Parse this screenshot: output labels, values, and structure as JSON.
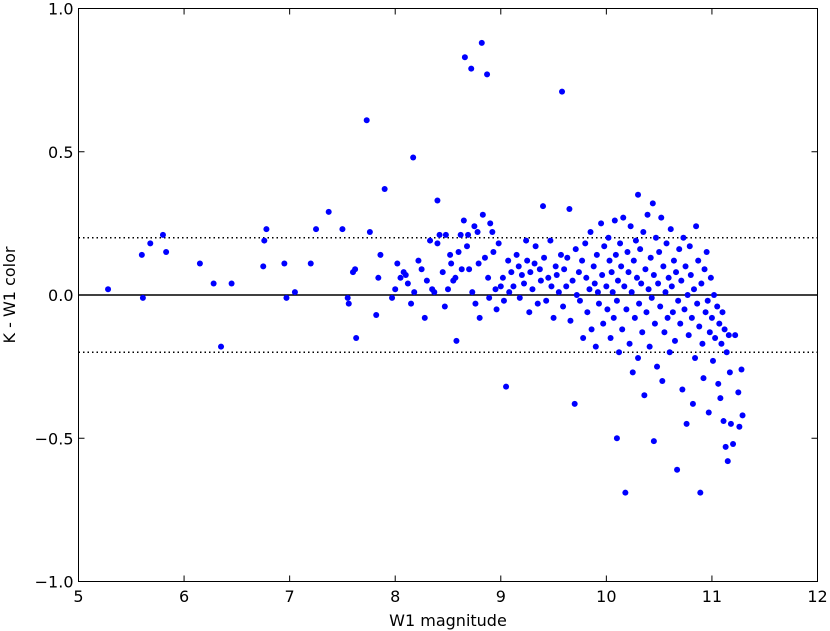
{
  "chart_data": {
    "type": "scatter",
    "title": "",
    "xlabel": "W1 magnitude",
    "ylabel": "K - W1 color",
    "xlim": [
      5,
      12
    ],
    "ylim": [
      -1.0,
      1.0
    ],
    "x_ticks": [
      5,
      6,
      7,
      8,
      9,
      10,
      11,
      12
    ],
    "x_tick_labels": [
      "5",
      "6",
      "7",
      "8",
      "9",
      "10",
      "11",
      "12"
    ],
    "y_ticks": [
      -1.0,
      -0.5,
      0.0,
      0.5,
      1.0
    ],
    "y_tick_labels": [
      "−1.0",
      "−0.5",
      "0.0",
      "0.5",
      "1.0"
    ],
    "grid": false,
    "legend": "none",
    "reference_lines": [
      {
        "y": 0.0,
        "style": "solid"
      },
      {
        "y": 0.2,
        "style": "dotted"
      },
      {
        "y": -0.2,
        "style": "dotted"
      }
    ],
    "point_color": "#0000ff",
    "points": [
      [
        5.28,
        0.02
      ],
      [
        5.6,
        0.14
      ],
      [
        5.61,
        -0.01
      ],
      [
        5.68,
        0.18
      ],
      [
        5.8,
        0.21
      ],
      [
        5.83,
        0.15
      ],
      [
        6.15,
        0.11
      ],
      [
        6.28,
        0.04
      ],
      [
        6.35,
        -0.18
      ],
      [
        6.45,
        0.04
      ],
      [
        6.75,
        0.1
      ],
      [
        6.76,
        0.19
      ],
      [
        6.78,
        0.23
      ],
      [
        6.95,
        0.11
      ],
      [
        6.97,
        -0.01
      ],
      [
        7.05,
        0.01
      ],
      [
        7.2,
        0.11
      ],
      [
        7.25,
        0.23
      ],
      [
        7.37,
        0.29
      ],
      [
        7.5,
        0.23
      ],
      [
        7.55,
        -0.01
      ],
      [
        7.56,
        -0.03
      ],
      [
        7.6,
        0.08
      ],
      [
        7.62,
        0.09
      ],
      [
        7.63,
        -0.15
      ],
      [
        7.73,
        0.61
      ],
      [
        7.76,
        0.22
      ],
      [
        7.82,
        -0.07
      ],
      [
        7.84,
        0.06
      ],
      [
        7.86,
        0.14
      ],
      [
        7.9,
        0.37
      ],
      [
        7.97,
        -0.01
      ],
      [
        8.0,
        0.02
      ],
      [
        8.02,
        0.11
      ],
      [
        8.05,
        0.06
      ],
      [
        8.08,
        0.08
      ],
      [
        8.1,
        0.07
      ],
      [
        8.12,
        0.04
      ],
      [
        8.15,
        -0.03
      ],
      [
        8.17,
        0.48
      ],
      [
        8.18,
        0.01
      ],
      [
        8.22,
        0.12
      ],
      [
        8.25,
        0.09
      ],
      [
        8.28,
        -0.08
      ],
      [
        8.3,
        0.05
      ],
      [
        8.33,
        0.19
      ],
      [
        8.35,
        0.02
      ],
      [
        8.37,
        0.01
      ],
      [
        8.4,
        0.33
      ],
      [
        8.4,
        0.18
      ],
      [
        8.42,
        0.21
      ],
      [
        8.45,
        0.08
      ],
      [
        8.47,
        -0.04
      ],
      [
        8.48,
        0.21
      ],
      [
        8.5,
        0.02
      ],
      [
        8.52,
        0.14
      ],
      [
        8.53,
        0.11
      ],
      [
        8.55,
        0.05
      ],
      [
        8.57,
        0.06
      ],
      [
        8.58,
        -0.16
      ],
      [
        8.6,
        0.15
      ],
      [
        8.62,
        0.21
      ],
      [
        8.63,
        0.09
      ],
      [
        8.65,
        0.26
      ],
      [
        8.66,
        0.83
      ],
      [
        8.68,
        0.17
      ],
      [
        8.69,
        0.21
      ],
      [
        8.7,
        0.09
      ],
      [
        8.72,
        0.79
      ],
      [
        8.73,
        0.01
      ],
      [
        8.75,
        0.24
      ],
      [
        8.76,
        -0.03
      ],
      [
        8.78,
        0.22
      ],
      [
        8.79,
        0.11
      ],
      [
        8.8,
        -0.08
      ],
      [
        8.82,
        0.88
      ],
      [
        8.83,
        0.28
      ],
      [
        8.85,
        0.13
      ],
      [
        8.87,
        0.77
      ],
      [
        8.88,
        0.06
      ],
      [
        8.89,
        -0.01
      ],
      [
        8.9,
        0.25
      ],
      [
        8.92,
        0.22
      ],
      [
        8.93,
        0.15
      ],
      [
        8.95,
        0.02
      ],
      [
        8.96,
        -0.05
      ],
      [
        8.98,
        0.18
      ],
      [
        9.0,
        0.03
      ],
      [
        9.02,
        0.06
      ],
      [
        9.03,
        -0.02
      ],
      [
        9.05,
        -0.32
      ],
      [
        9.07,
        0.12
      ],
      [
        9.08,
        0.01
      ],
      [
        9.1,
        0.08
      ],
      [
        9.12,
        0.03
      ],
      [
        9.15,
        0.14
      ],
      [
        9.17,
        0.1
      ],
      [
        9.18,
        -0.01
      ],
      [
        9.2,
        0.07
      ],
      [
        9.22,
        0.04
      ],
      [
        9.24,
        0.19
      ],
      [
        9.25,
        0.12
      ],
      [
        9.27,
        -0.06
      ],
      [
        9.28,
        0.08
      ],
      [
        9.3,
        0.02
      ],
      [
        9.32,
        0.11
      ],
      [
        9.33,
        0.17
      ],
      [
        9.35,
        -0.03
      ],
      [
        9.37,
        0.09
      ],
      [
        9.38,
        0.05
      ],
      [
        9.4,
        0.31
      ],
      [
        9.41,
        0.13
      ],
      [
        9.43,
        -0.02
      ],
      [
        9.45,
        0.06
      ],
      [
        9.47,
        0.19
      ],
      [
        9.48,
        0.03
      ],
      [
        9.5,
        -0.08
      ],
      [
        9.52,
        0.1
      ],
      [
        9.53,
        0.07
      ],
      [
        9.55,
        0.01
      ],
      [
        9.57,
        0.14
      ],
      [
        9.58,
        0.71
      ],
      [
        9.59,
        -0.04
      ],
      [
        9.6,
        0.09
      ],
      [
        9.62,
        0.03
      ],
      [
        9.63,
        0.13
      ],
      [
        9.65,
        0.3
      ],
      [
        9.66,
        -0.09
      ],
      [
        9.68,
        0.05
      ],
      [
        9.7,
        -0.38
      ],
      [
        9.71,
        0.16
      ],
      [
        9.72,
        0.0
      ],
      [
        9.74,
        0.08
      ],
      [
        9.75,
        -0.02
      ],
      [
        9.77,
        0.12
      ],
      [
        9.78,
        -0.15
      ],
      [
        9.8,
        0.18
      ],
      [
        9.81,
        0.06
      ],
      [
        9.82,
        -0.06
      ],
      [
        9.84,
        0.02
      ],
      [
        9.85,
        0.22
      ],
      [
        9.86,
        -0.12
      ],
      [
        9.88,
        0.1
      ],
      [
        9.89,
        0.04
      ],
      [
        9.9,
        -0.18
      ],
      [
        9.91,
        0.14
      ],
      [
        9.92,
        0.01
      ],
      [
        9.93,
        -0.03
      ],
      [
        9.95,
        0.25
      ],
      [
        9.96,
        0.07
      ],
      [
        9.97,
        -0.1
      ],
      [
        9.98,
        0.17
      ],
      [
        10.0,
        0.03
      ],
      [
        10.01,
        -0.05
      ],
      [
        10.02,
        0.2
      ],
      [
        10.03,
        0.12
      ],
      [
        10.04,
        -0.15
      ],
      [
        10.05,
        0.08
      ],
      [
        10.06,
        0.01
      ],
      [
        10.07,
        -0.08
      ],
      [
        10.08,
        0.26
      ],
      [
        10.09,
        0.14
      ],
      [
        10.1,
        -0.5
      ],
      [
        10.1,
        -0.02
      ],
      [
        10.11,
        0.05
      ],
      [
        10.12,
        -0.2
      ],
      [
        10.13,
        0.18
      ],
      [
        10.14,
        0.1
      ],
      [
        10.15,
        -0.12
      ],
      [
        10.16,
        0.27
      ],
      [
        10.17,
        0.03
      ],
      [
        10.18,
        -0.69
      ],
      [
        10.19,
        -0.05
      ],
      [
        10.2,
        0.15
      ],
      [
        10.21,
        0.08
      ],
      [
        10.22,
        -0.17
      ],
      [
        10.23,
        0.24
      ],
      [
        10.24,
        0.01
      ],
      [
        10.25,
        -0.27
      ],
      [
        10.26,
        0.12
      ],
      [
        10.27,
        -0.08
      ],
      [
        10.28,
        0.19
      ],
      [
        10.29,
        0.06
      ],
      [
        10.3,
        -0.22
      ],
      [
        10.3,
        0.35
      ],
      [
        10.31,
        -0.03
      ],
      [
        10.32,
        0.16
      ],
      [
        10.33,
        0.04
      ],
      [
        10.34,
        -0.13
      ],
      [
        10.35,
        0.22
      ],
      [
        10.36,
        -0.35
      ],
      [
        10.37,
        0.09
      ],
      [
        10.38,
        -0.06
      ],
      [
        10.39,
        0.28
      ],
      [
        10.4,
        0.02
      ],
      [
        10.41,
        -0.18
      ],
      [
        10.42,
        0.13
      ],
      [
        10.43,
        -0.01
      ],
      [
        10.44,
        0.32
      ],
      [
        10.45,
        -0.51
      ],
      [
        10.45,
        0.07
      ],
      [
        10.46,
        -0.1
      ],
      [
        10.47,
        0.2
      ],
      [
        10.48,
        -0.25
      ],
      [
        10.49,
        0.04
      ],
      [
        10.5,
        0.15
      ],
      [
        10.51,
        -0.04
      ],
      [
        10.52,
        0.27
      ],
      [
        10.53,
        -0.3
      ],
      [
        10.54,
        0.1
      ],
      [
        10.55,
        -0.13
      ],
      [
        10.56,
        0.01
      ],
      [
        10.57,
        0.18
      ],
      [
        10.58,
        -0.08
      ],
      [
        10.59,
        0.06
      ],
      [
        10.6,
        -0.2
      ],
      [
        10.61,
        0.23
      ],
      [
        10.62,
        0.03
      ],
      [
        10.63,
        -0.06
      ],
      [
        10.64,
        0.12
      ],
      [
        10.65,
        -0.16
      ],
      [
        10.66,
        0.08
      ],
      [
        10.67,
        -0.61
      ],
      [
        10.68,
        -0.02
      ],
      [
        10.69,
        0.16
      ],
      [
        10.7,
        -0.1
      ],
      [
        10.71,
        0.05
      ],
      [
        10.72,
        -0.33
      ],
      [
        10.73,
        0.2
      ],
      [
        10.74,
        -0.05
      ],
      [
        10.75,
        0.1
      ],
      [
        10.76,
        -0.45
      ],
      [
        10.77,
        0.0
      ],
      [
        10.78,
        -0.14
      ],
      [
        10.79,
        0.17
      ],
      [
        10.8,
        0.07
      ],
      [
        10.81,
        -0.08
      ],
      [
        10.82,
        -0.38
      ],
      [
        10.83,
        0.02
      ],
      [
        10.84,
        -0.22
      ],
      [
        10.85,
        0.24
      ],
      [
        10.86,
        -0.03
      ],
      [
        10.87,
        0.12
      ],
      [
        10.88,
        -0.11
      ],
      [
        10.89,
        -0.69
      ],
      [
        10.9,
        0.04
      ],
      [
        10.91,
        -0.17
      ],
      [
        10.92,
        -0.29
      ],
      [
        10.93,
        0.09
      ],
      [
        10.94,
        -0.06
      ],
      [
        10.95,
        0.15
      ],
      [
        10.96,
        -0.02
      ],
      [
        10.97,
        -0.41
      ],
      [
        10.98,
        -0.13
      ],
      [
        10.99,
        0.06
      ],
      [
        11.0,
        -0.08
      ],
      [
        11.01,
        -0.23
      ],
      [
        11.02,
        0.0
      ],
      [
        11.03,
        -0.15
      ],
      [
        11.05,
        -0.04
      ],
      [
        11.06,
        -0.31
      ],
      [
        11.07,
        -0.1
      ],
      [
        11.08,
        -0.36
      ],
      [
        11.09,
        -0.17
      ],
      [
        11.1,
        -0.06
      ],
      [
        11.11,
        -0.44
      ],
      [
        11.12,
        -0.12
      ],
      [
        11.13,
        -0.53
      ],
      [
        11.14,
        -0.2
      ],
      [
        11.15,
        -0.58
      ],
      [
        11.16,
        -0.14
      ],
      [
        11.17,
        -0.27
      ],
      [
        11.18,
        -0.45
      ],
      [
        11.2,
        -0.52
      ],
      [
        11.22,
        -0.14
      ],
      [
        11.25,
        -0.34
      ],
      [
        11.26,
        -0.46
      ],
      [
        11.28,
        -0.26
      ],
      [
        11.29,
        -0.42
      ]
    ]
  }
}
